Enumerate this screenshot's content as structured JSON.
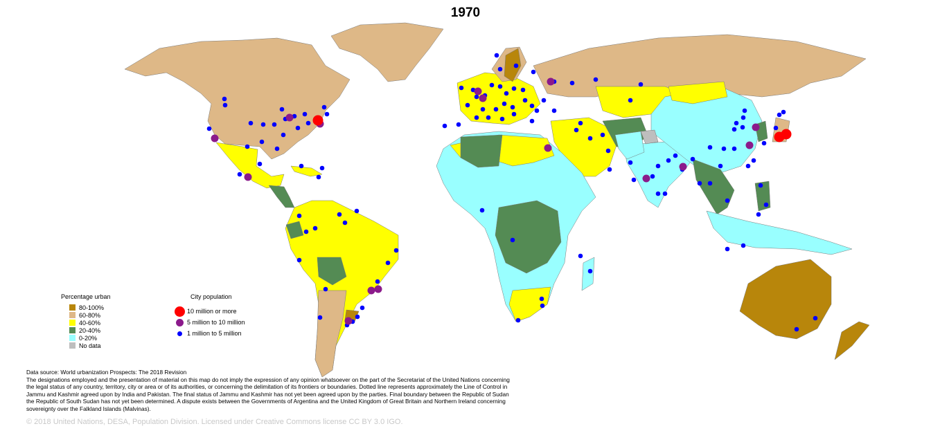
{
  "title": "1970",
  "colors": {
    "u80_100": "#b8860b",
    "u60_80": "#deb887",
    "u40_60": "#ffff00",
    "u20_40": "#548b54",
    "u0_20": "#99ffff",
    "nodata": "#bebebe",
    "city_large": "#ff0000",
    "city_mid": "#8b1a8b",
    "city_small": "#0000ff"
  },
  "legend_urban": {
    "heading": "Percentage urban",
    "items": [
      {
        "label": "80-100%",
        "color": "#b8860b"
      },
      {
        "label": "60-80%",
        "color": "#deb887"
      },
      {
        "label": "40-60%",
        "color": "#ffff00"
      },
      {
        "label": "20-40%",
        "color": "#548b54"
      },
      {
        "label": "0-20%",
        "color": "#99ffff"
      },
      {
        "label": "No data",
        "color": "#bebebe"
      }
    ]
  },
  "legend_city": {
    "heading": "City population",
    "items": [
      {
        "label": "10 million or more",
        "color": "#ff0000"
      },
      {
        "label": "5 million to 10 million",
        "color": "#8b1a8b"
      },
      {
        "label": "1 million to 5 million",
        "color": "#0000ff"
      }
    ]
  },
  "source_text": {
    "line1": "Data source: World urbanization Prospects: The 2018 Revision",
    "disclaimer": "The designations employed and the presentation of material on this map do not imply the expression of any opinion whatsoever on the part of the Secretariat of the United Nations concerning the legal status of any country, territory, city or area or of its authorities, or concerning the delimitation of its frontiers or boundaries. Dotted line represents approximately the Line of Control in Jammu and Kashmir agreed upon by India and Pakistan. The final status of Jammu and Kashmir has not yet been agreed upon by the parties. Final boundary between the Republic of Sudan the Republic of South Sudan has not yet been determined. A dispute exists between the Governments of Argentina and the United Kingdom of Great Britain and Northern Ireland concerning sovereignty over the Falkland Islands (Malvinas)."
  },
  "copyright": "© 2018 United Nations, DESA, Population Division. Licensed under Creative Commons license CC BY 3.0 IGO."
}
